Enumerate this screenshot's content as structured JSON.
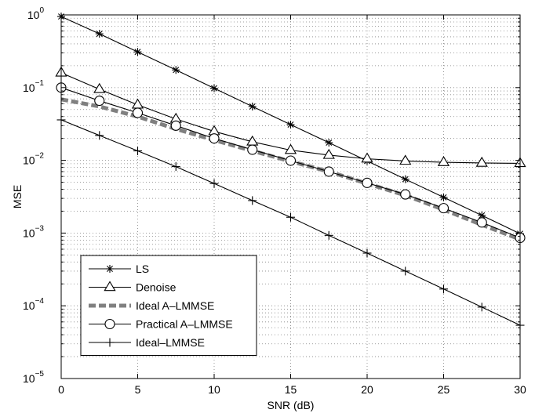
{
  "chart_data": {
    "type": "line",
    "xlabel": "SNR (dB)",
    "ylabel": "MSE",
    "xlim": [
      0,
      30
    ],
    "ylim": [
      1e-05,
      1
    ],
    "yscale": "log",
    "grid": true,
    "legend_position": "bottom-left",
    "x_ticks": [
      "0",
      "5",
      "10",
      "15",
      "20",
      "25",
      "30"
    ],
    "y_ticks": [
      {
        "mantissa": "10",
        "exp": "0"
      },
      {
        "mantissa": "10",
        "exp": "−1"
      },
      {
        "mantissa": "10",
        "exp": "−2"
      },
      {
        "mantissa": "10",
        "exp": "−3"
      },
      {
        "mantissa": "10",
        "exp": "−4"
      },
      {
        "mantissa": "10",
        "exp": "−5"
      }
    ],
    "series": [
      {
        "name": "LS",
        "marker": "star",
        "line_style": "solid",
        "color": "#000000",
        "x": [
          0,
          2.5,
          5,
          7.5,
          10,
          12.5,
          15,
          17.5,
          20,
          22.5,
          25,
          27.5,
          30
        ],
        "values": [
          0.95,
          0.55,
          0.31,
          0.175,
          0.098,
          0.055,
          0.031,
          0.0175,
          0.0098,
          0.0055,
          0.0031,
          0.00175,
          0.00098
        ]
      },
      {
        "name": "Denoise",
        "marker": "triangle",
        "line_style": "solid",
        "color": "#000000",
        "x": [
          0,
          2.5,
          5,
          7.5,
          10,
          12.5,
          15,
          17.5,
          20,
          22.5,
          25,
          27.5,
          30
        ],
        "values": [
          0.16,
          0.095,
          0.058,
          0.037,
          0.025,
          0.018,
          0.0138,
          0.0118,
          0.0105,
          0.0098,
          0.0094,
          0.0092,
          0.0091
        ]
      },
      {
        "name": "Ideal A–LMMSE",
        "marker": "none",
        "line_style": "dashed",
        "color": "#808080",
        "x": [
          0,
          2.5,
          5,
          7.5,
          10,
          12.5,
          15,
          17.5,
          20,
          22.5,
          25,
          27.5,
          30
        ],
        "values": [
          0.069,
          0.055,
          0.04,
          0.027,
          0.019,
          0.0135,
          0.0097,
          0.007,
          0.0048,
          0.0033,
          0.0021,
          0.0013,
          0.00082
        ]
      },
      {
        "name": "Practical A–LMMSE",
        "marker": "circle",
        "line_style": "solid",
        "color": "#000000",
        "x": [
          0,
          2.5,
          5,
          7.5,
          10,
          12.5,
          15,
          17.5,
          20,
          22.5,
          25,
          27.5,
          30
        ],
        "values": [
          0.1,
          0.066,
          0.045,
          0.03,
          0.02,
          0.014,
          0.0099,
          0.007,
          0.0049,
          0.0034,
          0.0022,
          0.0014,
          0.00086
        ]
      },
      {
        "name": "Ideal–LMMSE",
        "marker": "plus",
        "line_style": "solid",
        "color": "#000000",
        "x": [
          0,
          2.5,
          5,
          7.5,
          10,
          12.5,
          15,
          17.5,
          20,
          22.5,
          25,
          27.5,
          30
        ],
        "values": [
          0.036,
          0.022,
          0.0135,
          0.0082,
          0.0048,
          0.0028,
          0.00165,
          0.00093,
          0.00053,
          0.0003,
          0.00017,
          9.6e-05,
          5.4e-05
        ]
      }
    ]
  }
}
